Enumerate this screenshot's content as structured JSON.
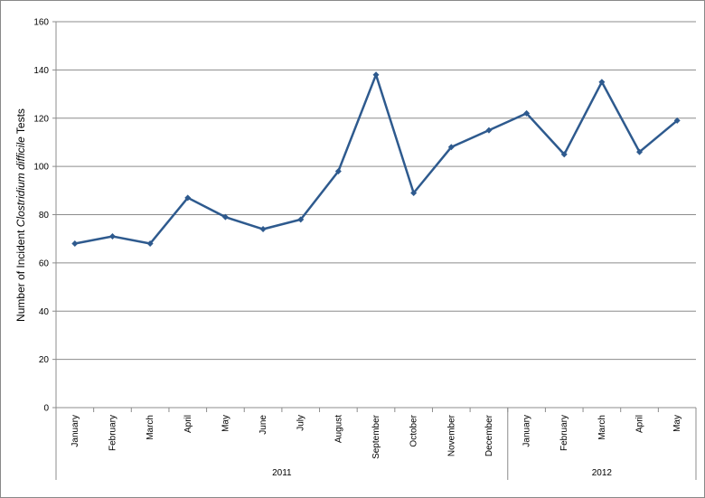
{
  "chart_data": {
    "type": "line",
    "title": "",
    "xlabel": "",
    "ylabel": {
      "part1": "Number of Incident ",
      "part2_italic": "Clostridium difficile",
      "part3": " Tests"
    },
    "ylim": [
      0,
      160
    ],
    "yticks": [
      "0",
      "20",
      "40",
      "60",
      "80",
      "100",
      "120",
      "140",
      "160"
    ],
    "grid": true,
    "categories": [
      "January",
      "February",
      "March",
      "April",
      "May",
      "June",
      "July",
      "August",
      "September",
      "October",
      "November",
      "December",
      "January",
      "February",
      "March",
      "April",
      "May"
    ],
    "year_groups": [
      {
        "label": "2011",
        "start": 0,
        "end": 11
      },
      {
        "label": "2012",
        "start": 12,
        "end": 16
      }
    ],
    "series": [
      {
        "values": [
          68,
          71,
          68,
          87,
          79,
          74,
          78,
          98,
          138,
          89,
          108,
          115,
          122,
          105,
          135,
          106,
          119
        ],
        "color": "#2E5A8E"
      }
    ]
  }
}
